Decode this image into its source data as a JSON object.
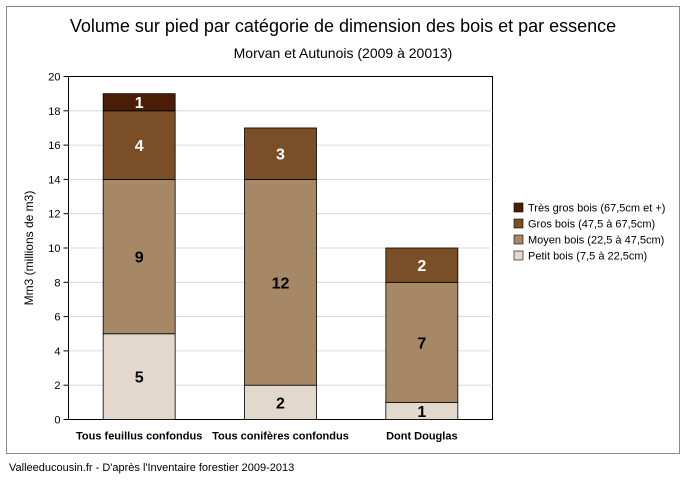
{
  "chart_data": {
    "type": "bar",
    "stacked": true,
    "title": "Volume sur pied par catégorie de dimension des bois et par essence",
    "subtitle": "Morvan et Autunois (2009 à 20013)",
    "xlabel": "",
    "ylabel": "Mm3 (millions de m3)",
    "ylim": [
      0,
      20
    ],
    "yticks": [
      0,
      2,
      4,
      6,
      8,
      10,
      12,
      14,
      16,
      18,
      20
    ],
    "grid": true,
    "legend_position": "right",
    "categories": [
      "Tous feuillus confondus",
      "Tous conifères confondus",
      "Dont Douglas"
    ],
    "series": [
      {
        "name": "Petit bois (7,5 à 22,5cm)",
        "color": "#e2d8cb",
        "label_color": "#000000",
        "values": [
          5,
          2,
          1
        ]
      },
      {
        "name": "Moyen bois (22,5 à 47,5cm)",
        "color": "#a78866",
        "label_color": "#000000",
        "values": [
          9,
          12,
          7
        ]
      },
      {
        "name": "Gros bois (47,5 à 67,5cm)",
        "color": "#7a4f27",
        "label_color": "#ffffff",
        "values": [
          4,
          3,
          2
        ]
      },
      {
        "name": "Très gros bois (67,5cm et +)",
        "color": "#4c1d06",
        "label_color": "#ffffff",
        "values": [
          1,
          0,
          0
        ]
      }
    ],
    "legend_order": [
      3,
      2,
      1,
      0
    ]
  },
  "footer": "Valleeducousin.fr - D'après l'Inventaire forestier 2009-2013"
}
